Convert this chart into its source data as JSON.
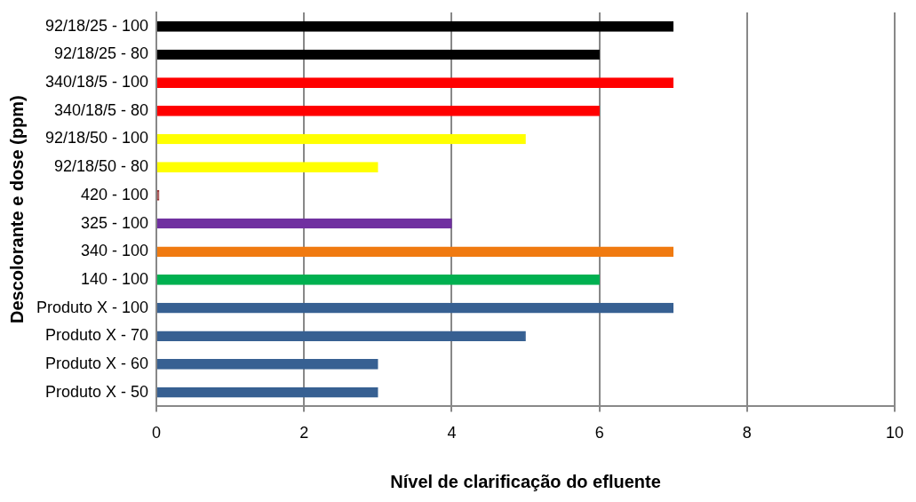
{
  "chart_data": {
    "type": "bar",
    "orientation": "horizontal",
    "xlabel": "Nível de clarificação do efluente",
    "ylabel": "Descolorante e dose (ppm)",
    "categories": [
      "92/18/25 - 100",
      "92/18/25 - 80",
      "340/18/5 - 100",
      "340/18/5 - 80",
      "92/18/50 - 100",
      "92/18/50 - 80",
      "420 - 100",
      "325 - 100",
      "340 - 100",
      "140 - 100",
      "Produto X - 100",
      "Produto X - 70",
      "Produto X - 60",
      "Produto X - 50"
    ],
    "values": [
      7,
      6,
      7,
      6,
      5,
      3,
      0,
      4,
      7,
      6,
      7,
      5,
      3,
      3
    ],
    "colors": [
      "#000000",
      "#000000",
      "#ff0000",
      "#ff0000",
      "#ffff00",
      "#ffff00",
      "#993333",
      "#7030a0",
      "#f07a10",
      "#00b050",
      "#376092",
      "#376092",
      "#376092",
      "#376092"
    ],
    "xlim": [
      0,
      10
    ],
    "xticks": [
      0,
      2,
      4,
      6,
      8,
      10
    ],
    "grid": "x",
    "legend": false
  }
}
